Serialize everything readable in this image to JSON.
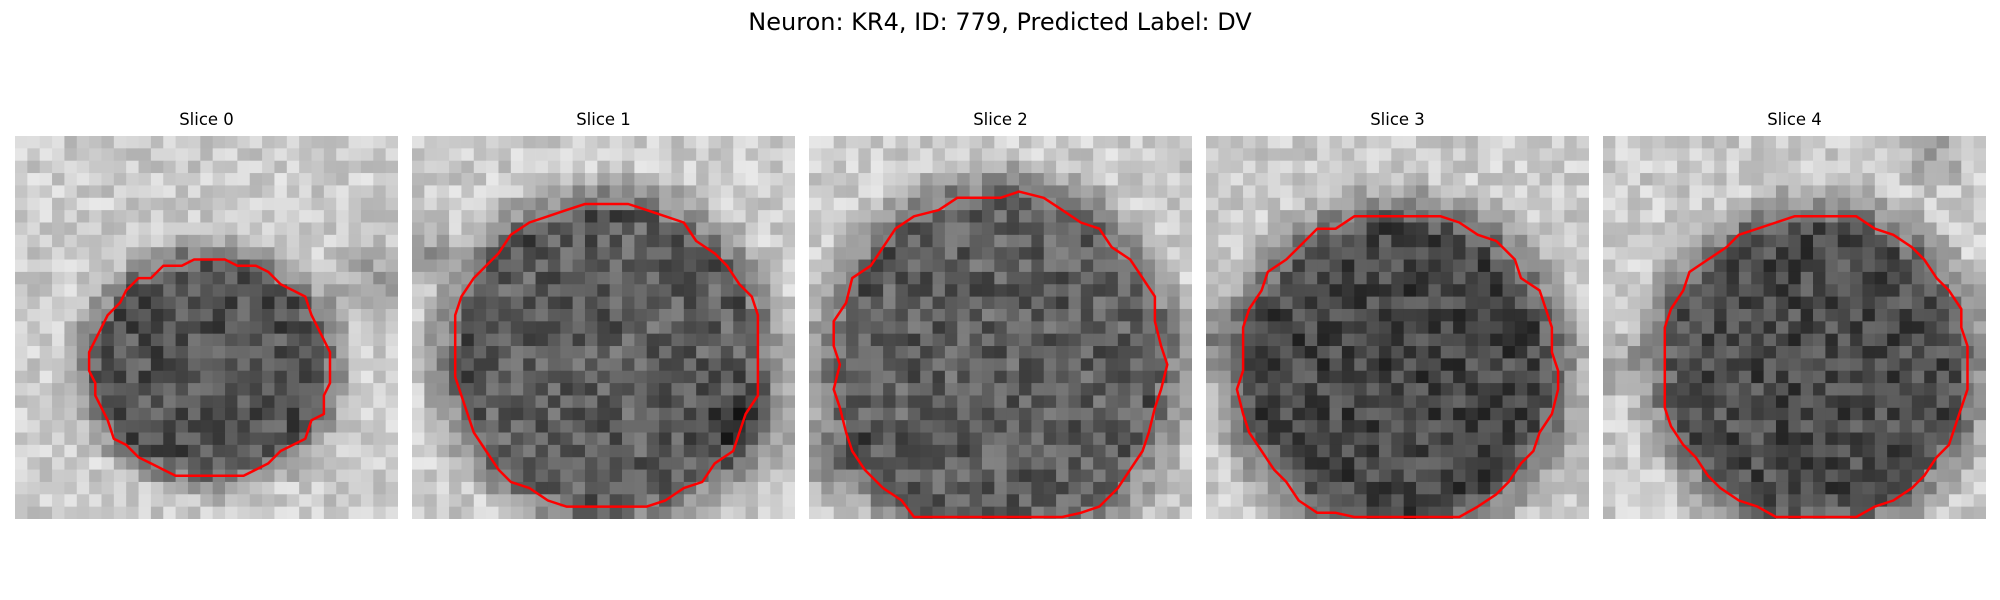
{
  "figure": {
    "title": "Neuron: KR4, ID: 779, Predicted Label: DV"
  },
  "panels": [
    {
      "title": "Slice 0"
    },
    {
      "title": "Slice 1"
    },
    {
      "title": "Slice 2"
    },
    {
      "title": "Slice 3"
    },
    {
      "title": "Slice 4"
    }
  ],
  "style": {
    "contour_color": "#ff0000",
    "colormap": "grayscale"
  }
}
